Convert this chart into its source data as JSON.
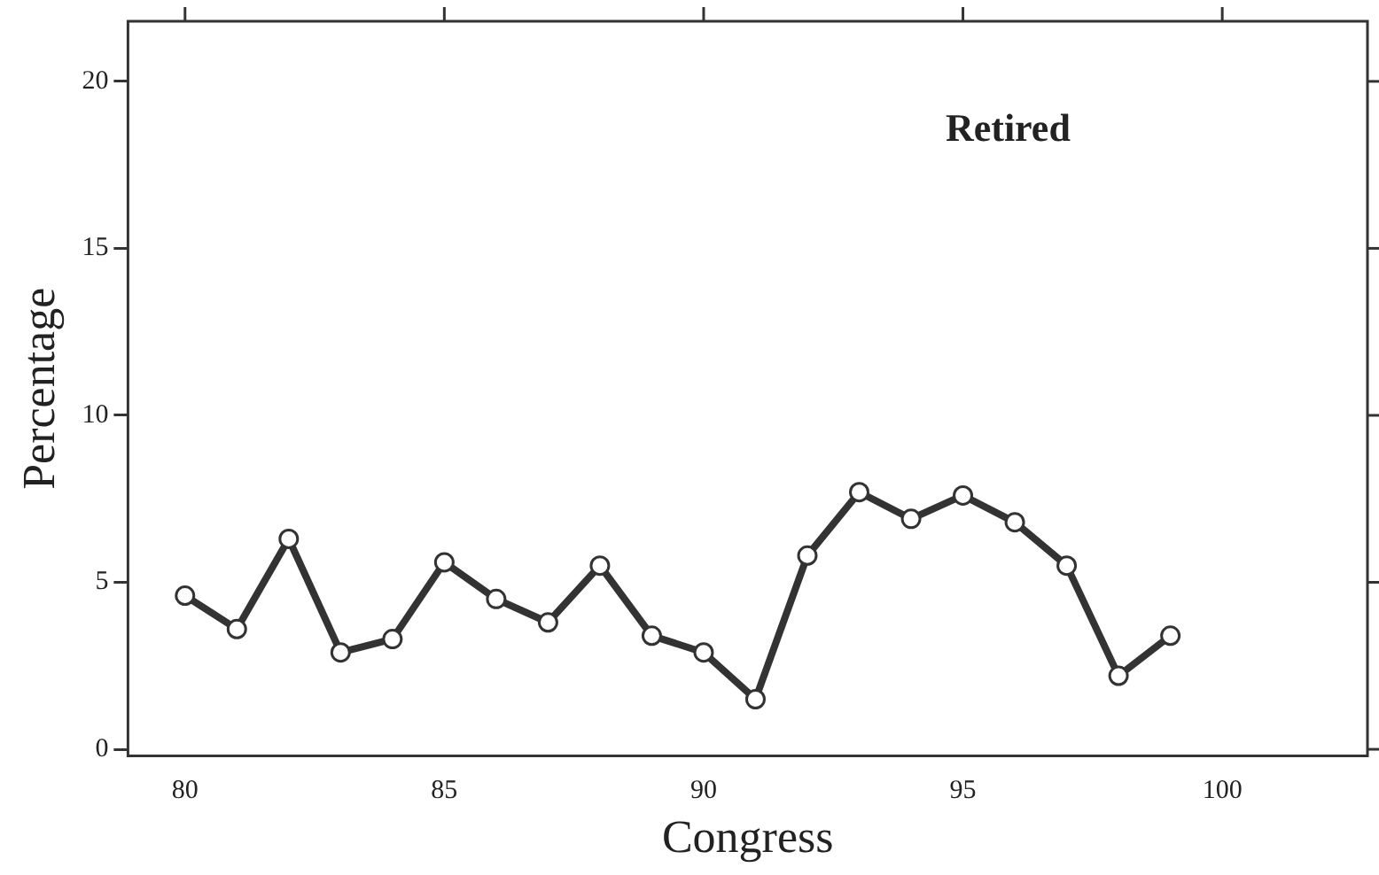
{
  "chart_data": {
    "type": "line",
    "xlabel": "Congress",
    "ylabel": "Percentage",
    "annotations": [
      "Retired"
    ],
    "x": [
      80,
      81,
      82,
      83,
      84,
      85,
      86,
      87,
      88,
      89,
      90,
      91,
      92,
      93,
      94,
      95,
      96,
      97,
      98,
      99
    ],
    "series": [
      {
        "color": "#333333",
        "values": [
          4.6,
          3.6,
          6.3,
          2.9,
          3.3,
          5.6,
          4.5,
          3.8,
          5.5,
          3.4,
          2.9,
          1.5,
          5.8,
          7.7,
          6.9,
          7.6,
          6.8,
          5.5,
          2.2,
          3.4
        ]
      }
    ],
    "xlim": [
      78.9,
      102.8
    ],
    "ylim": [
      -0.2,
      21.8
    ],
    "xticks": [
      80,
      85,
      90,
      95,
      100
    ],
    "yticks": [
      0,
      5,
      10,
      15,
      20
    ],
    "grid": false,
    "legend": false,
    "marker": "circle",
    "line_style": "solid"
  }
}
